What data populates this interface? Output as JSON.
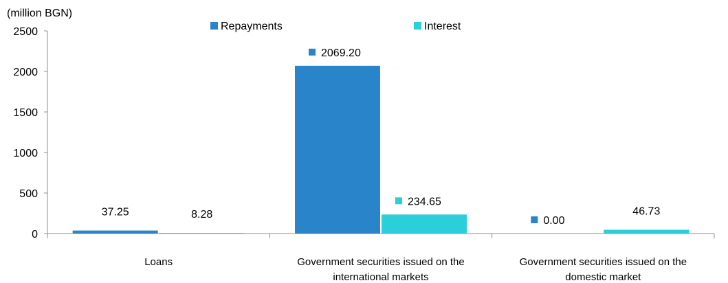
{
  "chart_data": {
    "type": "bar",
    "unit_label": "(million BGN)",
    "categories": [
      [
        "Loans"
      ],
      [
        "Government securities issued on the",
        "international markets"
      ],
      [
        "Government securities issued on the",
        "domestic market"
      ]
    ],
    "series": [
      {
        "name": "Repayments",
        "color": "#2A84C9",
        "values": [
          37.25,
          2069.2,
          0.0
        ],
        "labels": [
          "37.25",
          "2069.20",
          "0.00"
        ]
      },
      {
        "name": "Interest",
        "color": "#2ACFD9",
        "values": [
          8.28,
          234.65,
          46.73
        ],
        "labels": [
          "8.28",
          "234.65",
          "46.73"
        ]
      }
    ],
    "ylim": [
      0,
      2500
    ],
    "yticks": [
      "0",
      "500",
      "1000",
      "1500",
      "2000",
      "2500"
    ],
    "grid": false,
    "legend_position": "top"
  }
}
